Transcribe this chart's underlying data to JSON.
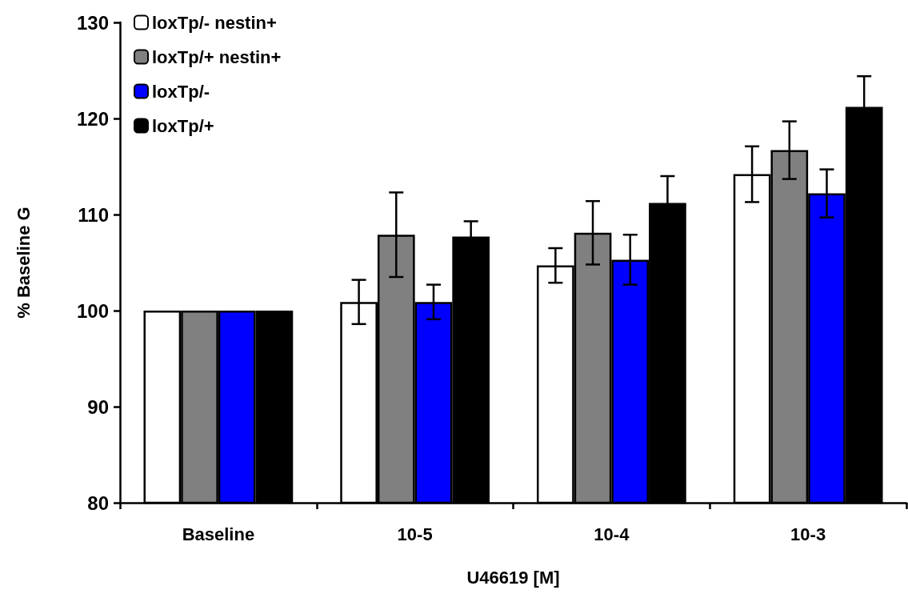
{
  "chart_data": {
    "type": "bar",
    "xlabel": "U46619 [M]",
    "ylabel": "% Baseline G",
    "categories": [
      "Baseline",
      "10-5",
      "10-4",
      "10-3"
    ],
    "series": [
      {
        "name": "loxTp/- nestin+",
        "color": "#ffffff",
        "values": [
          100,
          100.9,
          104.7,
          114.2
        ],
        "errors": [
          null,
          2.3,
          1.8,
          2.9
        ]
      },
      {
        "name": "loxTp/+ nestin+",
        "color": "#808080",
        "values": [
          100,
          107.9,
          108.1,
          116.7
        ],
        "errors": [
          null,
          4.4,
          3.3,
          3.0
        ]
      },
      {
        "name": "loxTp/-",
        "color": "#0000ff",
        "values": [
          100,
          100.9,
          105.3,
          112.2
        ],
        "errors": [
          null,
          1.8,
          2.6,
          2.5
        ]
      },
      {
        "name": "loxTp/+",
        "color": "#000000",
        "values": [
          100,
          107.7,
          111.2,
          121.2
        ],
        "errors": [
          null,
          1.6,
          2.8,
          3.2
        ]
      }
    ],
    "ylim": [
      80,
      130
    ],
    "yticks": [
      80,
      90,
      100,
      110,
      120,
      130
    ],
    "grid": false,
    "legend": "top left"
  }
}
